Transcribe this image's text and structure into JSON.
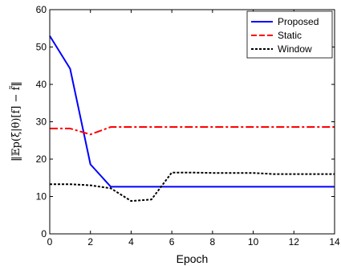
{
  "chart_data": {
    "type": "line",
    "title": "",
    "xlabel": "Epoch",
    "ylabel": "‖𝔼p(ξ|θ)[f] − f̃‖",
    "xlim": [
      0,
      14
    ],
    "ylim": [
      0,
      60
    ],
    "xticks": [
      0,
      2,
      4,
      6,
      8,
      10,
      12,
      14
    ],
    "yticks": [
      0,
      10,
      20,
      30,
      40,
      50,
      60
    ],
    "xtick_labels": [
      "0",
      "2",
      "4",
      "6",
      "8",
      "10",
      "12",
      "14"
    ],
    "ytick_labels": [
      "0",
      "10",
      "20",
      "30",
      "40",
      "50",
      "60"
    ],
    "grid": false,
    "legend_position": "top-right",
    "series": [
      {
        "name": "Proposed",
        "color": "#0000ff",
        "style": "solid",
        "x": [
          0,
          1,
          2,
          3,
          4,
          5,
          6,
          7,
          8,
          9,
          10,
          11,
          12,
          13,
          14
        ],
        "y": [
          53,
          44.2,
          18.6,
          12.6,
          12.6,
          12.6,
          12.6,
          12.6,
          12.6,
          12.6,
          12.6,
          12.6,
          12.6,
          12.6,
          12.6
        ]
      },
      {
        "name": "Static",
        "color": "#ff0000",
        "style": "dashdot",
        "x": [
          0,
          1,
          2,
          3,
          4,
          5,
          6,
          7,
          8,
          9,
          10,
          11,
          12,
          13,
          14
        ],
        "y": [
          28.2,
          28.2,
          26.6,
          28.6,
          28.6,
          28.6,
          28.6,
          28.6,
          28.6,
          28.6,
          28.6,
          28.6,
          28.6,
          28.6,
          28.6
        ]
      },
      {
        "name": "Window",
        "color": "#000000",
        "style": "dotted",
        "x": [
          0,
          1,
          2,
          3,
          4,
          5,
          6,
          7,
          8,
          9,
          10,
          11,
          12,
          13,
          14
        ],
        "y": [
          13.3,
          13.3,
          13,
          12.2,
          8.8,
          9.2,
          16.4,
          16.4,
          16.3,
          16.3,
          16.3,
          16,
          16,
          16,
          16
        ]
      }
    ]
  }
}
